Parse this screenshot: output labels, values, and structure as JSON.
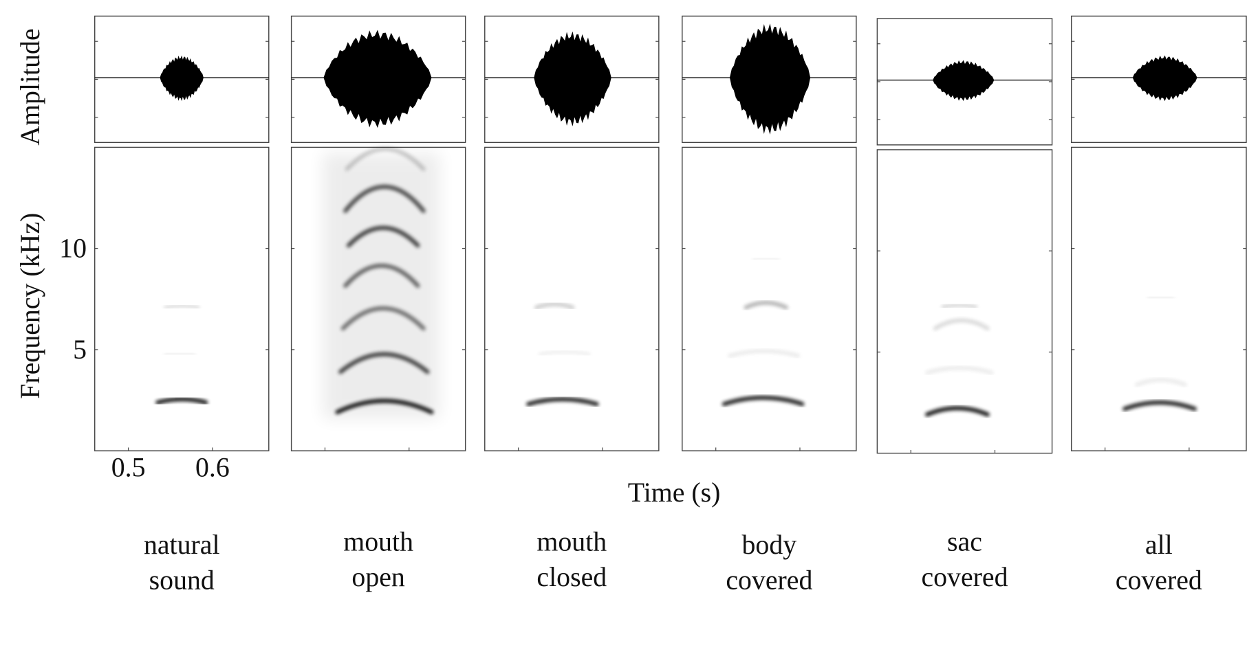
{
  "chart_data": {
    "type": "spectrogram",
    "amplitude_label": "Amplitude",
    "ylabel": "Frequency (kHz)",
    "xlabel": "Time (s)",
    "ylim": [
      0,
      15
    ],
    "yticks": [
      5,
      10
    ],
    "xlim": [
      0.46,
      0.667
    ],
    "xticks": [
      0.5,
      0.6
    ],
    "panels": [
      {
        "label": [
          "natural",
          "sound"
        ]
      },
      {
        "label": [
          "mouth",
          "open"
        ]
      },
      {
        "label": [
          "mouth",
          "closed"
        ]
      },
      {
        "label": [
          "body",
          "covered"
        ]
      },
      {
        "label": [
          "sac",
          "covered"
        ]
      },
      {
        "label": [
          "all",
          "covered"
        ]
      }
    ]
  }
}
